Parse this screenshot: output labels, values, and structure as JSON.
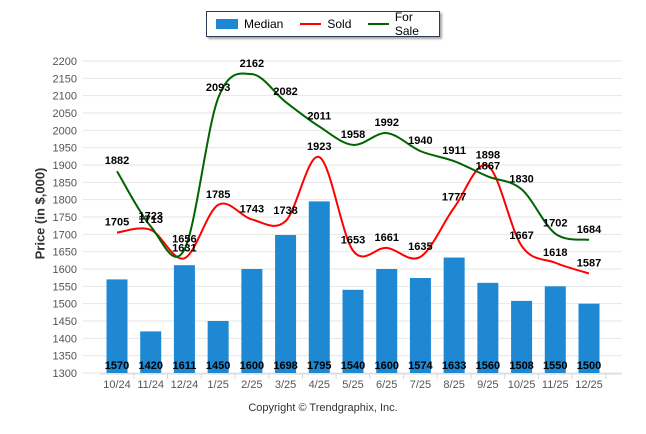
{
  "chart_data": {
    "type": "bar",
    "title": "",
    "xlabel": "",
    "ylabel": "Price (in $,000)",
    "ylim": [
      1300,
      2200
    ],
    "ytick_step": 50,
    "grid": true,
    "legend_position": "top-center",
    "categories": [
      "10/24",
      "11/24",
      "12/24",
      "1/25",
      "2/25",
      "3/25",
      "4/25",
      "5/25",
      "6/25",
      "7/25",
      "8/25",
      "9/25",
      "10/25",
      "11/25",
      "12/25"
    ],
    "series": [
      {
        "name": "Median",
        "type": "bar",
        "color": "#1e88d3",
        "values": [
          1570,
          1420,
          1611,
          1450,
          1600,
          1698,
          1795,
          1540,
          1600,
          1574,
          1633,
          1560,
          1508,
          1550,
          1500
        ]
      },
      {
        "name": "Sold",
        "type": "line",
        "color": "#ff0000",
        "values": [
          1705,
          1713,
          1631,
          1785,
          1743,
          1738,
          1923,
          1653,
          1661,
          1635,
          1777,
          1898,
          1667,
          1618,
          1587
        ]
      },
      {
        "name": "For Sale",
        "type": "line",
        "color": "#006400",
        "values": [
          1882,
          1723,
          1656,
          2093,
          2162,
          2082,
          2011,
          1958,
          1992,
          1940,
          1911,
          1867,
          1830,
          1702,
          1684
        ]
      }
    ]
  },
  "legend": {
    "median": "Median",
    "sold": "Sold",
    "for_sale": "For Sale"
  },
  "copyright": "Copyright © Trendgraphix, Inc."
}
